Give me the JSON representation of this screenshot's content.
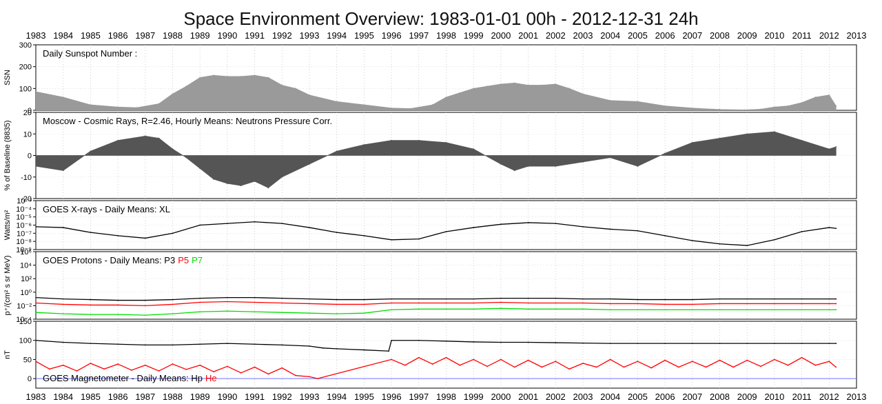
{
  "title": "Space Environment Overview:  1983-01-01 00h - 2012-12-31 24h",
  "chart_data": {
    "type": "line",
    "x_range": [
      "1983-01-01",
      "2013-01-01"
    ],
    "x_tick_labels": [
      "1983",
      "1984",
      "1985",
      "1986",
      "1987",
      "1988",
      "1989",
      "1990",
      "1991",
      "1992",
      "1993",
      "1994",
      "1995",
      "1996",
      "1997",
      "1998",
      "1999",
      "2000",
      "2001",
      "2002",
      "2003",
      "2004",
      "2005",
      "2006",
      "2007",
      "2008",
      "2009",
      "2010",
      "2011",
      "2012",
      "2013"
    ],
    "colors": {
      "gray_fill": "#9a9a9a",
      "dark_fill": "#555555",
      "black": "#000000",
      "red": "#ff0000",
      "green": "#00dd00",
      "zero_line": "#6f6fff"
    },
    "panels": [
      {
        "id": "ssn",
        "label": "Daily Sunspot Number  :",
        "ylabel": "SSN",
        "scale": "linear",
        "ylim": [
          0,
          300
        ],
        "y_ticks": [
          "0",
          "100",
          "200",
          "300"
        ],
        "style": "bars",
        "series": [
          {
            "color": "#9a9a9a",
            "x": [
              1983.0,
              1984.0,
              1985.0,
              1986.0,
              1986.7,
              1987.5,
              1988.0,
              1988.5,
              1989.0,
              1989.5,
              1990.0,
              1990.5,
              1991.0,
              1991.5,
              1992.0,
              1992.5,
              1993.0,
              1994.0,
              1995.0,
              1996.0,
              1996.7,
              1997.5,
              1998.0,
              1998.5,
              1999.0,
              1999.5,
              2000.0,
              2000.5,
              2001.0,
              2001.5,
              2002.0,
              2002.5,
              2003.0,
              2004.0,
              2005.0,
              2006.0,
              2007.0,
              2008.0,
              2008.9,
              2009.5,
              2010.0,
              2010.5,
              2011.0,
              2011.5,
              2012.0,
              2012.25
            ],
            "y": [
              85,
              60,
              25,
              15,
              12,
              30,
              75,
              110,
              150,
              160,
              155,
              155,
              160,
              150,
              115,
              100,
              70,
              40,
              25,
              10,
              8,
              25,
              60,
              80,
              100,
              110,
              120,
              125,
              115,
              115,
              120,
              100,
              75,
              45,
              40,
              20,
              10,
              4,
              2,
              5,
              15,
              20,
              35,
              60,
              70,
              20
            ]
          }
        ]
      },
      {
        "id": "cosmic",
        "label": "Moscow - Cosmic Rays, R=2.46,   Hourly Means: Neutrons Pressure Corr.",
        "ylabel": "% of Baseline (8835)",
        "scale": "linear",
        "ylim": [
          -20,
          20
        ],
        "y_ticks": [
          "-20",
          "-10",
          "0",
          "10",
          "20"
        ],
        "style": "fill_zero",
        "series": [
          {
            "color": "#555555",
            "x": [
              1983.0,
              1984.0,
              1985.0,
              1986.0,
              1987.0,
              1987.5,
              1988.0,
              1988.5,
              1989.0,
              1989.5,
              1990.0,
              1990.5,
              1991.0,
              1991.5,
              1992.0,
              1993.0,
              1994.0,
              1995.0,
              1996.0,
              1997.0,
              1998.0,
              1999.0,
              2000.0,
              2000.5,
              2001.0,
              2002.0,
              2003.0,
              2004.0,
              2005.0,
              2006.0,
              2007.0,
              2008.0,
              2009.0,
              2010.0,
              2011.0,
              2012.0,
              2012.25
            ],
            "y": [
              -5,
              -7,
              2,
              7,
              9,
              8,
              3,
              -1,
              -6,
              -11,
              -13,
              -14,
              -12,
              -15,
              -10,
              -4,
              2,
              5,
              7,
              7,
              6,
              3,
              -4,
              -7,
              -5,
              -5,
              -3,
              -1,
              -5,
              1,
              6,
              8,
              10,
              11,
              7,
              3,
              4
            ]
          }
        ]
      },
      {
        "id": "xrays",
        "label": "GOES X-rays  - Daily Means: XL",
        "ylabel": "Watts/m²",
        "scale": "log",
        "ylim": [
          -9,
          -3
        ],
        "y_ticks": [
          "10⁻³",
          "10⁻⁴",
          "10⁻⁵",
          "10⁻⁶",
          "10⁻⁷",
          "10⁻⁸",
          "10⁻⁹"
        ],
        "style": "line",
        "series": [
          {
            "name": "XL",
            "color": "#000000",
            "x": [
              1983.0,
              1984.0,
              1985.0,
              1986.0,
              1987.0,
              1988.0,
              1989.0,
              1990.0,
              1991.0,
              1992.0,
              1993.0,
              1994.0,
              1995.0,
              1996.0,
              1997.0,
              1998.0,
              1999.0,
              2000.0,
              2001.0,
              2002.0,
              2003.0,
              2004.0,
              2005.0,
              2006.0,
              2007.0,
              2008.0,
              2009.0,
              2010.0,
              2011.0,
              2012.0,
              2012.25
            ],
            "y": [
              -6.2,
              -6.3,
              -6.9,
              -7.3,
              -7.6,
              -7.0,
              -6.0,
              -5.8,
              -5.6,
              -5.8,
              -6.3,
              -6.9,
              -7.3,
              -7.8,
              -7.7,
              -6.8,
              -6.3,
              -5.9,
              -5.7,
              -5.8,
              -6.2,
              -6.5,
              -6.7,
              -7.3,
              -7.9,
              -8.3,
              -8.5,
              -7.8,
              -6.8,
              -6.3,
              -6.4
            ]
          }
        ]
      },
      {
        "id": "protons",
        "label": "GOES  Protons - Daily Means: ",
        "series_labels": [
          "P3",
          "P5",
          "P7"
        ],
        "ylabel": "p⁺/(cm² s sr MeV)",
        "scale": "log",
        "ylim": [
          -4,
          6
        ],
        "y_ticks": [
          "10⁶",
          "10⁴",
          "10²",
          "10⁰",
          "10⁻²",
          "10⁻⁴"
        ],
        "style": "line",
        "series": [
          {
            "name": "P3",
            "color": "#000000",
            "x": [
              1983.0,
              1984.0,
              1985.0,
              1986.0,
              1987.0,
              1988.0,
              1989.0,
              1990.0,
              1991.0,
              1992.0,
              1993.0,
              1994.0,
              1995.0,
              1996.0,
              1997.0,
              1998.0,
              1999.0,
              2000.0,
              2001.0,
              2002.0,
              2003.0,
              2004.0,
              2005.0,
              2006.0,
              2007.0,
              2008.0,
              2009.0,
              2010.0,
              2011.0,
              2012.0,
              2012.25
            ],
            "y": [
              -0.8,
              -1.0,
              -1.1,
              -1.2,
              -1.2,
              -1.1,
              -0.9,
              -0.8,
              -0.8,
              -0.9,
              -1.0,
              -1.1,
              -1.1,
              -1.0,
              -1.0,
              -1.0,
              -1.0,
              -0.9,
              -0.9,
              -0.9,
              -1.0,
              -1.0,
              -1.1,
              -1.1,
              -1.1,
              -1.0,
              -1.0,
              -1.0,
              -1.0,
              -1.0,
              -1.0
            ]
          },
          {
            "name": "P5",
            "color": "#ff0000",
            "x": [
              1983.0,
              1984.0,
              1985.0,
              1986.0,
              1987.0,
              1988.0,
              1989.0,
              1990.0,
              1991.0,
              1992.0,
              1993.0,
              1994.0,
              1995.0,
              1996.0,
              1997.0,
              1998.0,
              1999.0,
              2000.0,
              2001.0,
              2002.0,
              2003.0,
              2004.0,
              2005.0,
              2006.0,
              2007.0,
              2008.0,
              2009.0,
              2010.0,
              2011.0,
              2012.0,
              2012.25
            ],
            "y": [
              -1.6,
              -1.8,
              -1.9,
              -1.9,
              -2.0,
              -1.8,
              -1.5,
              -1.4,
              -1.5,
              -1.6,
              -1.7,
              -1.8,
              -1.8,
              -1.6,
              -1.6,
              -1.6,
              -1.6,
              -1.5,
              -1.6,
              -1.6,
              -1.6,
              -1.7,
              -1.7,
              -1.8,
              -1.8,
              -1.7,
              -1.7,
              -1.7,
              -1.7,
              -1.7,
              -1.7
            ]
          },
          {
            "name": "P7",
            "color": "#00dd00",
            "x": [
              1983.0,
              1984.0,
              1985.0,
              1986.0,
              1987.0,
              1988.0,
              1989.0,
              1990.0,
              1991.0,
              1992.0,
              1993.0,
              1994.0,
              1995.0,
              1996.0,
              1997.0,
              1998.0,
              1999.0,
              2000.0,
              2001.0,
              2002.0,
              2003.0,
              2004.0,
              2005.0,
              2006.0,
              2007.0,
              2008.0,
              2009.0,
              2010.0,
              2011.0,
              2012.0,
              2012.25
            ],
            "y": [
              -3.0,
              -3.2,
              -3.3,
              -3.3,
              -3.4,
              -3.2,
              -2.9,
              -2.8,
              -2.9,
              -3.0,
              -3.1,
              -3.2,
              -3.1,
              -2.6,
              -2.5,
              -2.5,
              -2.5,
              -2.4,
              -2.5,
              -2.5,
              -2.5,
              -2.6,
              -2.6,
              -2.6,
              -2.6,
              -2.6,
              -2.6,
              -2.6,
              -2.6,
              -2.6,
              -2.6
            ]
          }
        ]
      },
      {
        "id": "mag",
        "label": "GOES Magnetometer  - Daily Means: ",
        "series_labels": [
          "Hp",
          "He"
        ],
        "ylabel": "nT",
        "scale": "linear",
        "ylim": [
          -25,
          150
        ],
        "y_ticks": [
          "-50",
          "0",
          "50",
          "100",
          "150"
        ],
        "style": "line",
        "zero_line": true,
        "series": [
          {
            "name": "Hp",
            "color": "#000000",
            "x": [
              1983.0,
              1984.0,
              1985.0,
              1986.0,
              1987.0,
              1988.0,
              1989.0,
              1990.0,
              1991.0,
              1992.0,
              1993.0,
              1993.5,
              1994.0,
              1995.0,
              1995.9,
              1996.0,
              1997.0,
              1998.0,
              1999.0,
              2000.0,
              2001.0,
              2002.0,
              2003.0,
              2004.0,
              2005.0,
              2006.0,
              2007.0,
              2008.0,
              2009.0,
              2010.0,
              2011.0,
              2012.0,
              2012.25
            ],
            "y": [
              100,
              95,
              92,
              90,
              88,
              88,
              90,
              92,
              90,
              88,
              85,
              80,
              78,
              75,
              72,
              100,
              100,
              98,
              96,
              95,
              95,
              94,
              93,
              92,
              92,
              92,
              92,
              92,
              92,
              92,
              92,
              92,
              92
            ]
          },
          {
            "name": "He",
            "color": "#ff0000",
            "x": [
              1983.0,
              1983.5,
              1984.0,
              1984.5,
              1985.0,
              1985.5,
              1986.0,
              1986.5,
              1987.0,
              1987.5,
              1988.0,
              1988.5,
              1989.0,
              1989.5,
              1990.0,
              1990.5,
              1991.0,
              1991.5,
              1992.0,
              1992.5,
              1993.0,
              1993.3,
              1996.0,
              1996.5,
              1997.0,
              1997.5,
              1998.0,
              1998.5,
              1999.0,
              1999.5,
              2000.0,
              2000.5,
              2001.0,
              2001.5,
              2002.0,
              2002.5,
              2003.0,
              2003.5,
              2004.0,
              2004.5,
              2005.0,
              2005.5,
              2006.0,
              2006.5,
              2007.0,
              2007.5,
              2008.0,
              2008.5,
              2009.0,
              2009.5,
              2010.0,
              2010.5,
              2011.0,
              2011.5,
              2012.0,
              2012.25
            ],
            "y": [
              45,
              25,
              35,
              20,
              40,
              25,
              38,
              22,
              35,
              20,
              38,
              24,
              35,
              18,
              32,
              15,
              30,
              12,
              28,
              8,
              5,
              0,
              50,
              35,
              55,
              38,
              55,
              35,
              50,
              32,
              50,
              30,
              48,
              30,
              45,
              25,
              40,
              30,
              50,
              30,
              45,
              28,
              48,
              30,
              45,
              30,
              48,
              30,
              48,
              32,
              50,
              35,
              55,
              35,
              45,
              30
            ]
          }
        ]
      }
    ]
  }
}
